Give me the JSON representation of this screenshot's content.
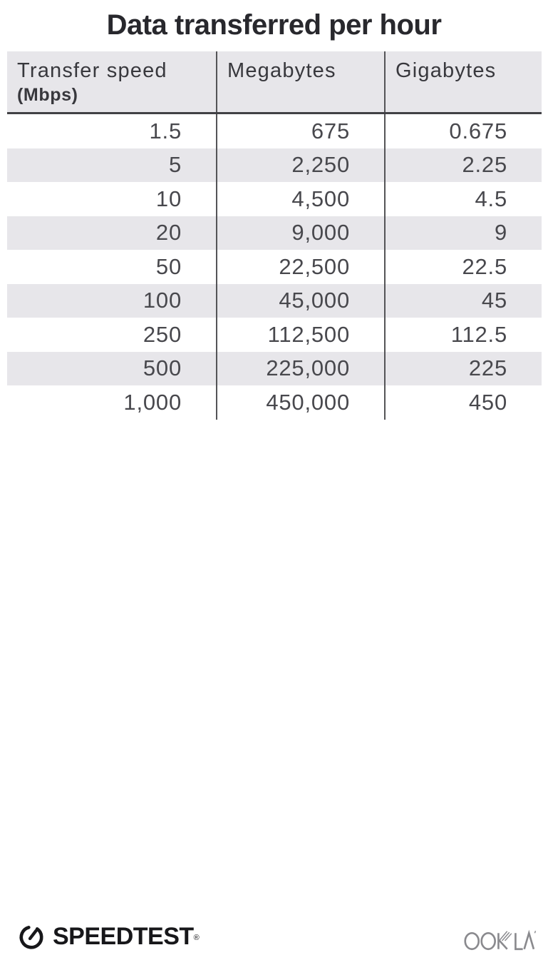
{
  "title": "Data transferred per hour",
  "table": {
    "headers": [
      {
        "label": "Transfer speed",
        "sub": "(Mbps)"
      },
      {
        "label": "Megabytes"
      },
      {
        "label": "Gigabytes"
      }
    ],
    "rows": [
      [
        "1.5",
        "675",
        "0.675"
      ],
      [
        "5",
        "2,250",
        "2.25"
      ],
      [
        "10",
        "4,500",
        "4.5"
      ],
      [
        "20",
        "9,000",
        "9"
      ],
      [
        "50",
        "22,500",
        "22.5"
      ],
      [
        "100",
        "45,000",
        "45"
      ],
      [
        "250",
        "112,500",
        "112.5"
      ],
      [
        "500",
        "225,000",
        "225"
      ],
      [
        "1,000",
        "450,000",
        "450"
      ]
    ]
  },
  "footer": {
    "speedtest_label": "SPEEDTEST",
    "speedtest_trademark": "®",
    "ookla_label": "OOKLA"
  },
  "colors": {
    "stripe_and_header_bg": "#e7e6ea",
    "column_divider": "#545457",
    "header_underline": "#414145",
    "title_text": "#28282d",
    "body_text": "#48484d",
    "speedtest_black": "#17171a",
    "ookla_gray": "#8a8a8e"
  },
  "chart_data": {
    "type": "table",
    "title": "Data transferred per hour",
    "columns": [
      "Transfer speed (Mbps)",
      "Megabytes",
      "Gigabytes"
    ],
    "rows": [
      [
        1.5,
        675,
        0.675
      ],
      [
        5,
        2250,
        2.25
      ],
      [
        10,
        4500,
        4.5
      ],
      [
        20,
        9000,
        9
      ],
      [
        50,
        22500,
        22.5
      ],
      [
        100,
        45000,
        45
      ],
      [
        250,
        112500,
        112.5
      ],
      [
        500,
        225000,
        225
      ],
      [
        1000,
        450000,
        450
      ]
    ],
    "layout": "striped rows (alternating light gray), dark vertical column dividers, numbers right-aligned, header row gray with bold underline"
  }
}
